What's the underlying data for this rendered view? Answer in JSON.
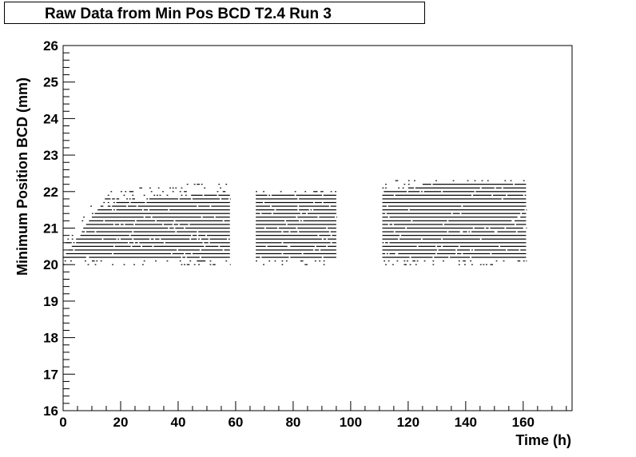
{
  "chart_data": {
    "type": "scatter",
    "title": "Raw Data from Min Pos BCD T2.4 Run 3",
    "xlabel": "Time (h)",
    "ylabel": "Minimum Position BCD (mm)",
    "xlim": [
      0,
      177
    ],
    "ylim": [
      16,
      26
    ],
    "x_ticks": [
      "0",
      "20",
      "40",
      "60",
      "80",
      "100",
      "120",
      "140",
      "160"
    ],
    "y_ticks": [
      "16",
      "17",
      "18",
      "19",
      "20",
      "21",
      "22",
      "23",
      "24",
      "25",
      "26"
    ],
    "grid": false,
    "marker_color": "#000000",
    "level_step_mm": 0.1,
    "segments": [
      {
        "x_start": 0.0,
        "x_end": 58.0,
        "level_min": 20.0,
        "level_max": 22.3,
        "edge": [
          [
            0.0,
            20.2
          ],
          [
            5.0,
            20.7
          ],
          [
            8.0,
            21.1
          ],
          [
            12.0,
            21.5
          ],
          [
            18.0,
            21.7
          ],
          [
            30.0,
            21.8
          ],
          [
            45.0,
            21.9
          ],
          [
            58.0,
            21.9
          ]
        ]
      },
      {
        "x_start": 67.0,
        "x_end": 95.0,
        "level_min": 20.0,
        "level_max": 22.0,
        "edge": [
          [
            67.0,
            21.9
          ],
          [
            95.0,
            21.9
          ]
        ]
      },
      {
        "x_start": 111.0,
        "x_end": 161.0,
        "level_min": 20.0,
        "level_max": 22.3,
        "edge": [
          [
            111.0,
            22.0
          ],
          [
            120.0,
            22.1
          ],
          [
            125.0,
            22.2
          ],
          [
            161.0,
            22.2
          ]
        ]
      }
    ]
  }
}
